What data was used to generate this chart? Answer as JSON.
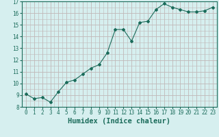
{
  "x": [
    0,
    1,
    2,
    3,
    4,
    5,
    6,
    7,
    8,
    9,
    10,
    11,
    12,
    13,
    14,
    15,
    16,
    17,
    18,
    19,
    20,
    21,
    22,
    23
  ],
  "y": [
    9.1,
    8.7,
    8.8,
    8.4,
    9.3,
    10.1,
    10.3,
    10.8,
    11.3,
    11.6,
    12.6,
    14.6,
    14.6,
    13.6,
    15.2,
    15.3,
    16.3,
    16.8,
    16.5,
    16.3,
    16.1,
    16.1,
    16.2,
    16.5
  ],
  "line_color": "#1a6b5a",
  "marker": "D",
  "marker_size": 2.0,
  "bg_color": "#cce8e8",
  "major_grid_color": "#c0b8b8",
  "minor_grid_color": "#c0b8b8",
  "plot_bg_color": "#d6efef",
  "xlabel": "Humidex (Indice chaleur)",
  "ylim": [
    8,
    17
  ],
  "xlim": [
    -0.5,
    23.5
  ],
  "yticks": [
    8,
    9,
    10,
    11,
    12,
    13,
    14,
    15,
    16,
    17
  ],
  "xticks": [
    0,
    1,
    2,
    3,
    4,
    5,
    6,
    7,
    8,
    9,
    10,
    11,
    12,
    13,
    14,
    15,
    16,
    17,
    18,
    19,
    20,
    21,
    22,
    23
  ],
  "tick_label_fontsize": 5.5,
  "xlabel_fontsize": 7.5,
  "axis_color": "#1a6b5a"
}
